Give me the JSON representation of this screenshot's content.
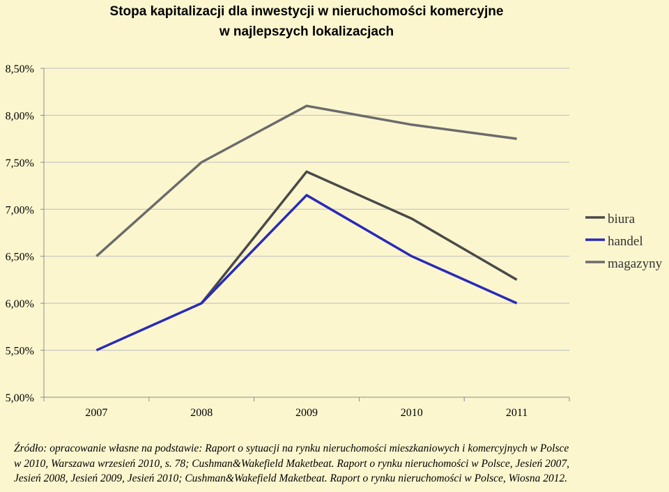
{
  "chart_data": {
    "type": "line",
    "title_line1": "Stopa kapitalizacji dla inwestycji w nieruchomości komercyjne",
    "title_line2": "w najlepszych lokalizacjach",
    "categories": [
      "2007",
      "2008",
      "2009",
      "2010",
      "2011"
    ],
    "ylim": [
      5.0,
      8.5
    ],
    "yticks": [
      {
        "v": 8.5,
        "label": "8,50%"
      },
      {
        "v": 8.0,
        "label": "8,00%"
      },
      {
        "v": 7.5,
        "label": "7,50%"
      },
      {
        "v": 7.0,
        "label": "7,00%"
      },
      {
        "v": 6.5,
        "label": "6,50%"
      },
      {
        "v": 6.0,
        "label": "6,00%"
      },
      {
        "v": 5.5,
        "label": "5,50%"
      },
      {
        "v": 5.0,
        "label": "5,00%"
      }
    ],
    "grid": true,
    "legend_position": "right",
    "series": [
      {
        "name": "biura",
        "color": "#4a4a4a",
        "values": [
          null,
          6.0,
          7.4,
          6.9,
          6.25
        ]
      },
      {
        "name": "handel",
        "color": "#2a2ab8",
        "values": [
          5.5,
          6.0,
          7.15,
          6.5,
          6.0
        ]
      },
      {
        "name": "magazyny",
        "color": "#6b6b6b",
        "values": [
          6.5,
          7.5,
          8.1,
          7.9,
          7.75
        ]
      }
    ]
  },
  "source": {
    "line1": "Źródło: opracowanie własne na podstawie: Raport o sytuacji na rynku nieruchomości mieszkaniowych i komercyjnych w Polsce",
    "line2": "w 2010, Warszawa wrzesień 2010, s. 78; Cushman&Wakefield Maketbeat. Raport o rynku nieruchomości w Polsce, Jesień 2007,",
    "line3": "Jesień 2008, Jesień 2009, Jesień 2010; Cushman&Wakefield Maketbeat. Raport o rynku nieruchomości w Polsce, Wiosna 2012."
  }
}
